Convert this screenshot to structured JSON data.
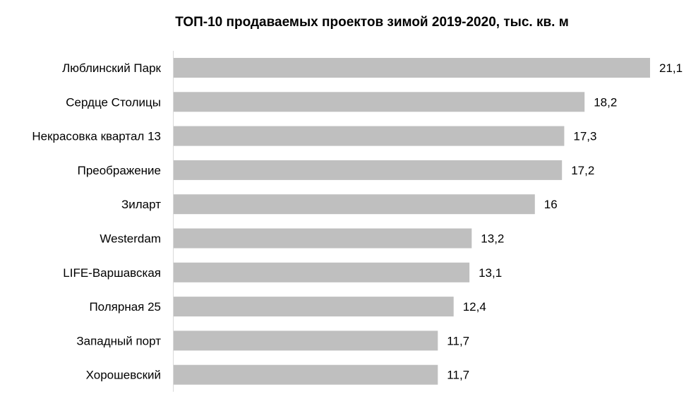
{
  "chart_data": {
    "type": "bar",
    "orientation": "horizontal",
    "title": "ТОП-10 продаваемых проектов зимой 2019-2020, тыс. кв. м",
    "xlabel": "",
    "ylabel": "",
    "categories": [
      "Люблинский Парк",
      "Сердце Столицы",
      "Некрасовка квартал 13",
      "Преображение",
      "Зиларт",
      "Westerdam",
      "LIFE-Варшавская",
      "Полярная 25",
      "Западный порт",
      "Хорошевский"
    ],
    "values": [
      21.1,
      18.2,
      17.3,
      17.2,
      16,
      13.2,
      13.1,
      12.4,
      11.7,
      11.7
    ],
    "value_labels": [
      "21,1",
      "18,2",
      "17,3",
      "17,2",
      "16",
      "13,2",
      "13,1",
      "12,4",
      "11,7",
      "11,7"
    ],
    "xlim": [
      0,
      21.1
    ],
    "bar_color": "#bfbfbf",
    "axis_color": "#d9d9d9",
    "grid": false,
    "legend": "none",
    "data_labels": true
  }
}
